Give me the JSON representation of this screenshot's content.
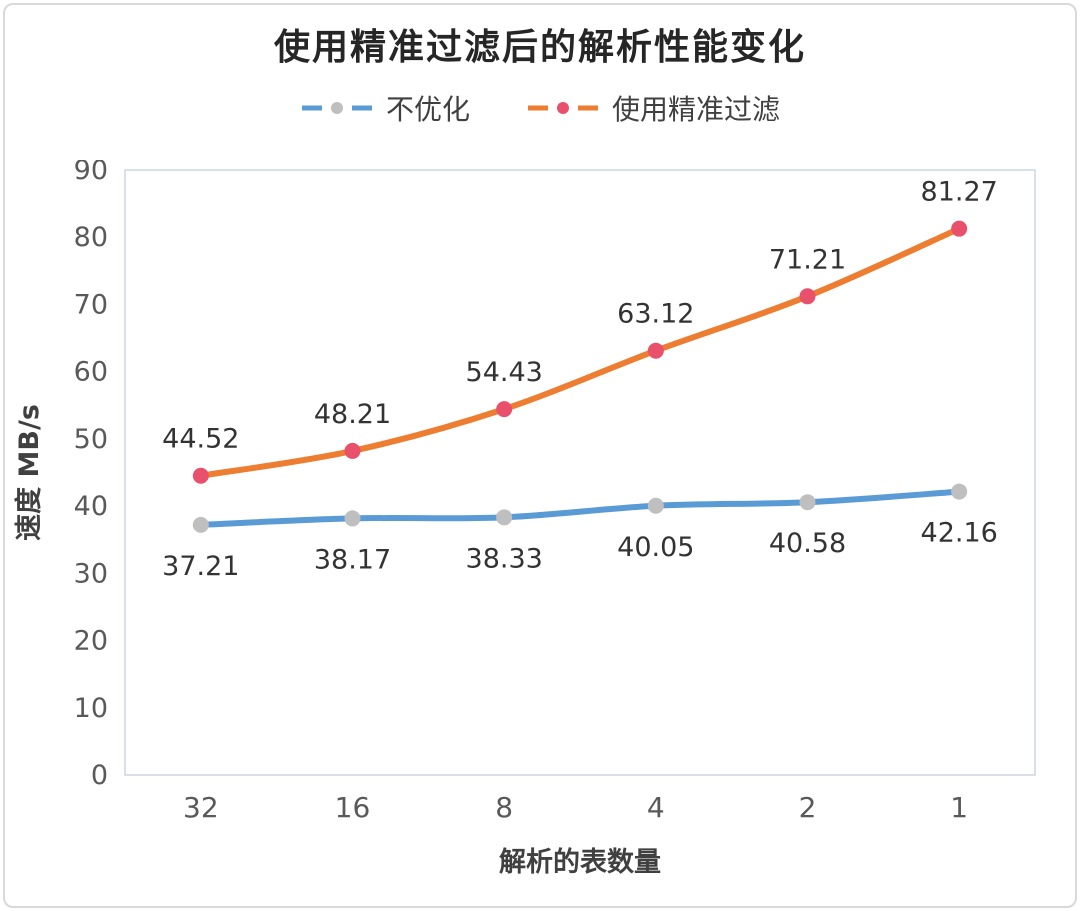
{
  "chart_data": {
    "type": "line",
    "title": "使用精准过滤后的解析性能变化",
    "xlabel": "解析的表数量",
    "ylabel": "速度 MB/s",
    "categories": [
      "32",
      "16",
      "8",
      "4",
      "2",
      "1"
    ],
    "ylim": [
      0,
      90
    ],
    "ytick_step": 10,
    "grid": false,
    "legend_position": "top",
    "plot_border_color": "#ccd6e2",
    "series": [
      {
        "name": "不优化",
        "color": "#5b9bd5",
        "marker_color": "#bfbfbf",
        "label_position": "below",
        "values": [
          37.21,
          38.17,
          38.33,
          40.05,
          40.58,
          42.16
        ]
      },
      {
        "name": "使用精准过滤",
        "color": "#ed7d31",
        "marker_color": "#e8506b",
        "label_position": "above",
        "values": [
          44.52,
          48.21,
          54.43,
          63.12,
          71.21,
          81.27
        ]
      }
    ]
  }
}
